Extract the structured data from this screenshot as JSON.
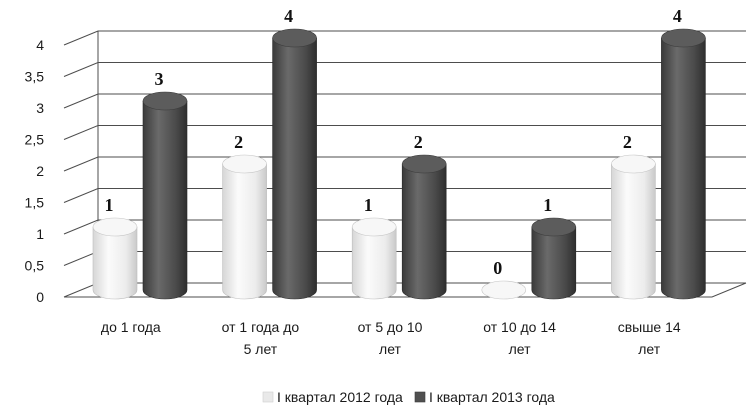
{
  "chart_data": {
    "type": "bar",
    "style": "3d-cylinder",
    "categories": [
      [
        "до 1 года"
      ],
      [
        "от 1 года до",
        "5 лет"
      ],
      [
        "от 5 до 10",
        "лет"
      ],
      [
        "от 10 до 14",
        "лет"
      ],
      [
        "свыше 14",
        "лет"
      ]
    ],
    "series": [
      {
        "name": "I квартал  2012 года",
        "values": [
          1,
          2,
          1,
          0,
          2
        ],
        "color": "#e9e9e9"
      },
      {
        "name": "I квартал  2013 года",
        "values": [
          3,
          4,
          2,
          1,
          4
        ],
        "color": "#505050"
      }
    ],
    "ylim": [
      0,
      4
    ],
    "yticks": [
      "0",
      "0,5",
      "1",
      "1,5",
      "2",
      "2,5",
      "3",
      "3,5",
      "4"
    ],
    "grid": true,
    "legend": "bottom"
  }
}
